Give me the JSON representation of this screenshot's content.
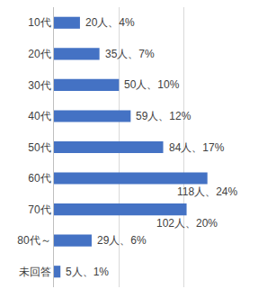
{
  "chart_data": {
    "type": "bar",
    "orientation": "horizontal",
    "categories": [
      "10代",
      "20代",
      "30代",
      "40代",
      "50代",
      "60代",
      "70代",
      "80代～",
      "未回答"
    ],
    "values": [
      20,
      35,
      50,
      59,
      84,
      118,
      102,
      29,
      5
    ],
    "value_labels": [
      "20人、4%",
      "35人、7%",
      "50人、10%",
      "59人、12%",
      "84人、17%",
      "118人、24%",
      "102人、20%",
      "29人、6%",
      "5人、1%"
    ],
    "color": "#4472c4",
    "xlim": [
      0,
      150
    ],
    "xticks": [
      0,
      50,
      100,
      150
    ],
    "grid": true,
    "data_labels": true,
    "tick_labels": "y"
  }
}
